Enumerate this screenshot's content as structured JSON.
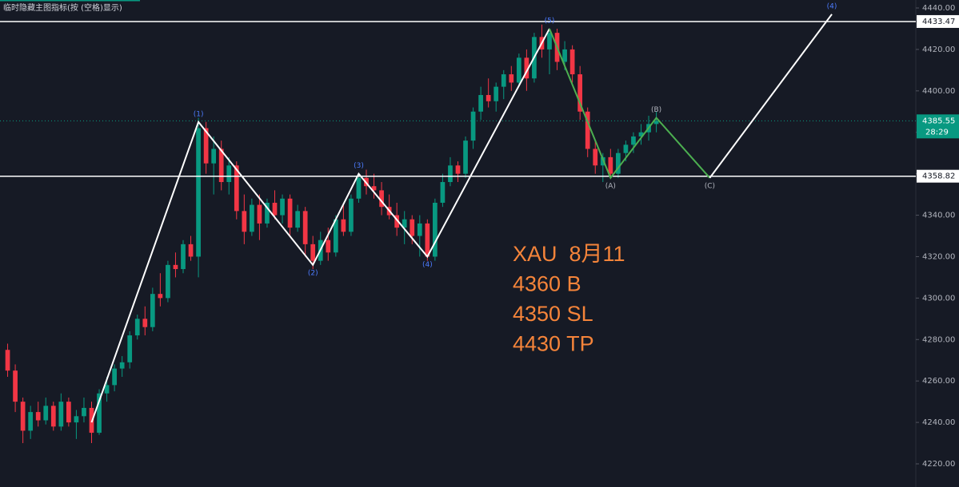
{
  "chart_data": {
    "type": "candlestick",
    "hidden_indicators_note": "临时隐藏主图指标(按 (空格)显示)",
    "annotation": [
      "XAU  8月11",
      "4360 B",
      "4350 SL",
      "4430 TP"
    ],
    "up_color": "#089981",
    "down_color": "#f23645",
    "xlim": [
      -1,
      119
    ],
    "ylim": [
      4220,
      4440
    ],
    "yticks": [
      {
        "value": 4220,
        "label": "4220.00"
      },
      {
        "value": 4240,
        "label": "4240.00"
      },
      {
        "value": 4260,
        "label": "4260.00"
      },
      {
        "value": 4280,
        "label": "4280.00"
      },
      {
        "value": 4300,
        "label": "4300.00"
      },
      {
        "value": 4320,
        "label": "4320.00"
      },
      {
        "value": 4340,
        "label": "4340.00"
      },
      {
        "value": 4360,
        "label": "4360.00"
      },
      {
        "value": 4380,
        "label": "4380.00"
      },
      {
        "value": 4400,
        "label": "4400.00"
      },
      {
        "value": 4420,
        "label": "4420.00"
      },
      {
        "value": 4440,
        "label": "4440.00"
      }
    ],
    "price_lines": [
      4433.47,
      4358.82
    ],
    "current_price": 4385.55,
    "countdown": "28:29",
    "candles": [
      [
        4275,
        4278,
        4262,
        4265
      ],
      [
        4265,
        4268,
        4245,
        4250
      ],
      [
        4250,
        4252,
        4230,
        4236
      ],
      [
        4236,
        4248,
        4232,
        4245
      ],
      [
        4245,
        4250,
        4238,
        4241
      ],
      [
        4241,
        4252,
        4239,
        4248
      ],
      [
        4248,
        4250,
        4236,
        4238
      ],
      [
        4238,
        4254,
        4236,
        4250
      ],
      [
        4250,
        4252,
        4238,
        4240
      ],
      [
        4240,
        4246,
        4232,
        4243
      ],
      [
        4243,
        4252,
        4240,
        4247
      ],
      [
        4247,
        4250,
        4230,
        4235
      ],
      [
        4235,
        4256,
        4234,
        4254
      ],
      [
        4254,
        4262,
        4250,
        4258
      ],
      [
        4258,
        4268,
        4255,
        4266
      ],
      [
        4266,
        4272,
        4262,
        4269
      ],
      [
        4269,
        4284,
        4266,
        4282
      ],
      [
        4282,
        4292,
        4280,
        4290
      ],
      [
        4290,
        4296,
        4282,
        4286
      ],
      [
        4286,
        4305,
        4284,
        4302
      ],
      [
        4302,
        4312,
        4296,
        4300
      ],
      [
        4300,
        4318,
        4298,
        4316
      ],
      [
        4316,
        4322,
        4310,
        4314
      ],
      [
        4314,
        4328,
        4312,
        4326
      ],
      [
        4326,
        4330,
        4318,
        4320
      ],
      [
        4320,
        4387,
        4310,
        4382
      ],
      [
        4382,
        4385,
        4360,
        4365
      ],
      [
        4365,
        4378,
        4350,
        4372
      ],
      [
        4372,
        4376,
        4352,
        4356
      ],
      [
        4356,
        4368,
        4350,
        4364
      ],
      [
        4364,
        4366,
        4338,
        4342
      ],
      [
        4342,
        4350,
        4326,
        4332
      ],
      [
        4332,
        4348,
        4330,
        4345
      ],
      [
        4345,
        4350,
        4328,
        4336
      ],
      [
        4336,
        4348,
        4334,
        4346
      ],
      [
        4346,
        4352,
        4338,
        4340
      ],
      [
        4340,
        4350,
        4336,
        4348
      ],
      [
        4348,
        4350,
        4330,
        4334
      ],
      [
        4334,
        4345,
        4332,
        4342
      ],
      [
        4342,
        4344,
        4320,
        4326
      ],
      [
        4326,
        4330,
        4314,
        4318
      ],
      [
        4318,
        4332,
        4316,
        4328
      ],
      [
        4328,
        4334,
        4318,
        4322
      ],
      [
        4322,
        4340,
        4320,
        4338
      ],
      [
        4338,
        4346,
        4330,
        4332
      ],
      [
        4332,
        4350,
        4330,
        4348
      ],
      [
        4348,
        4360,
        4346,
        4358
      ],
      [
        4358,
        4362,
        4350,
        4354
      ],
      [
        4354,
        4360,
        4348,
        4352
      ],
      [
        4352,
        4356,
        4340,
        4344
      ],
      [
        4344,
        4350,
        4338,
        4340
      ],
      [
        4340,
        4346,
        4330,
        4334
      ],
      [
        4334,
        4342,
        4326,
        4338
      ],
      [
        4338,
        4340,
        4326,
        4330
      ],
      [
        4330,
        4340,
        4320,
        4336
      ],
      [
        4336,
        4338,
        4318,
        4320
      ],
      [
        4320,
        4348,
        4318,
        4346
      ],
      [
        4346,
        4360,
        4344,
        4356
      ],
      [
        4356,
        4368,
        4354,
        4364
      ],
      [
        4364,
        4366,
        4356,
        4360
      ],
      [
        4360,
        4378,
        4358,
        4376
      ],
      [
        4376,
        4392,
        4372,
        4390
      ],
      [
        4390,
        4402,
        4386,
        4398
      ],
      [
        4398,
        4406,
        4392,
        4395
      ],
      [
        4395,
        4404,
        4390,
        4402
      ],
      [
        4402,
        4410,
        4396,
        4408
      ],
      [
        4408,
        4412,
        4400,
        4404
      ],
      [
        4404,
        4418,
        4402,
        4416
      ],
      [
        4416,
        4420,
        4400,
        4406
      ],
      [
        4406,
        4428,
        4404,
        4426
      ],
      [
        4426,
        4432,
        4416,
        4420
      ],
      [
        4420,
        4430,
        4408,
        4428
      ],
      [
        4428,
        4430,
        4410,
        4414
      ],
      [
        4414,
        4424,
        4410,
        4420
      ],
      [
        4420,
        4422,
        4404,
        4408
      ],
      [
        4408,
        4412,
        4386,
        4390
      ],
      [
        4390,
        4392,
        4368,
        4372
      ],
      [
        4372,
        4376,
        4360,
        4364
      ],
      [
        4364,
        4370,
        4356,
        4368
      ],
      [
        4368,
        4372,
        4358,
        4360
      ],
      [
        4360,
        4372,
        4358,
        4370
      ],
      [
        4370,
        4376,
        4366,
        4374
      ],
      [
        4374,
        4380,
        4370,
        4378
      ],
      [
        4378,
        4384,
        4374,
        4380
      ],
      [
        4380,
        4388,
        4376,
        4384
      ],
      [
        4384,
        4390,
        4380,
        4385.55
      ]
    ],
    "waves": [
      {
        "color": "#ffffff",
        "label_color": "#4d7cff",
        "x": [
          11,
          25,
          40,
          46,
          55,
          71
        ],
        "values": [
          4240,
          4385,
          4316,
          4360,
          4320,
          4430
        ],
        "labels": [
          null,
          "(1)",
          "(2)",
          "(3)",
          "(4)",
          "(5)"
        ]
      },
      {
        "color": "#4caf50",
        "label_color": "#b2b5be",
        "x": [
          71,
          79,
          85,
          92
        ],
        "values": [
          4430,
          4358,
          4387,
          4358
        ],
        "labels": [
          null,
          "(A)",
          "(B)",
          "(C)"
        ]
      },
      {
        "color": "#ffffff",
        "label_color": "#4d7cff",
        "x": [
          92,
          108
        ],
        "values": [
          4358,
          4437
        ],
        "labels": [
          null,
          "(4)"
        ]
      }
    ]
  }
}
